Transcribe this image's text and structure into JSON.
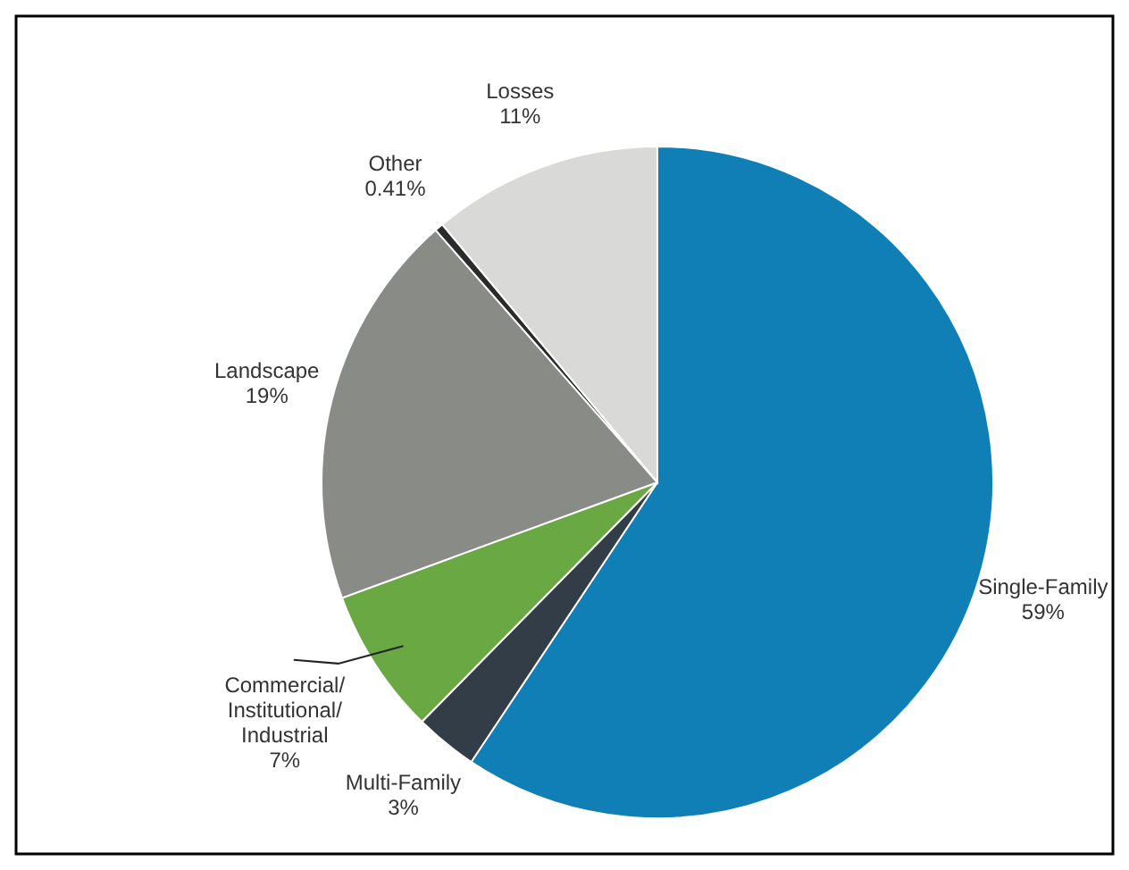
{
  "chart_data": {
    "type": "pie",
    "categories": [
      "Single-Family",
      "Multi-Family",
      "Commercial/Institutional/Industrial",
      "Landscape",
      "Other",
      "Losses"
    ],
    "values": [
      59,
      3,
      7,
      19,
      0.41,
      11
    ],
    "value_labels": [
      "59%",
      "3%",
      "7%",
      "19%",
      "0.41%",
      "11%"
    ],
    "colors": [
      "#0f7fb6",
      "#323d47",
      "#6aa843",
      "#898c86",
      "#2b2b2b",
      "#d9d9d7"
    ]
  }
}
